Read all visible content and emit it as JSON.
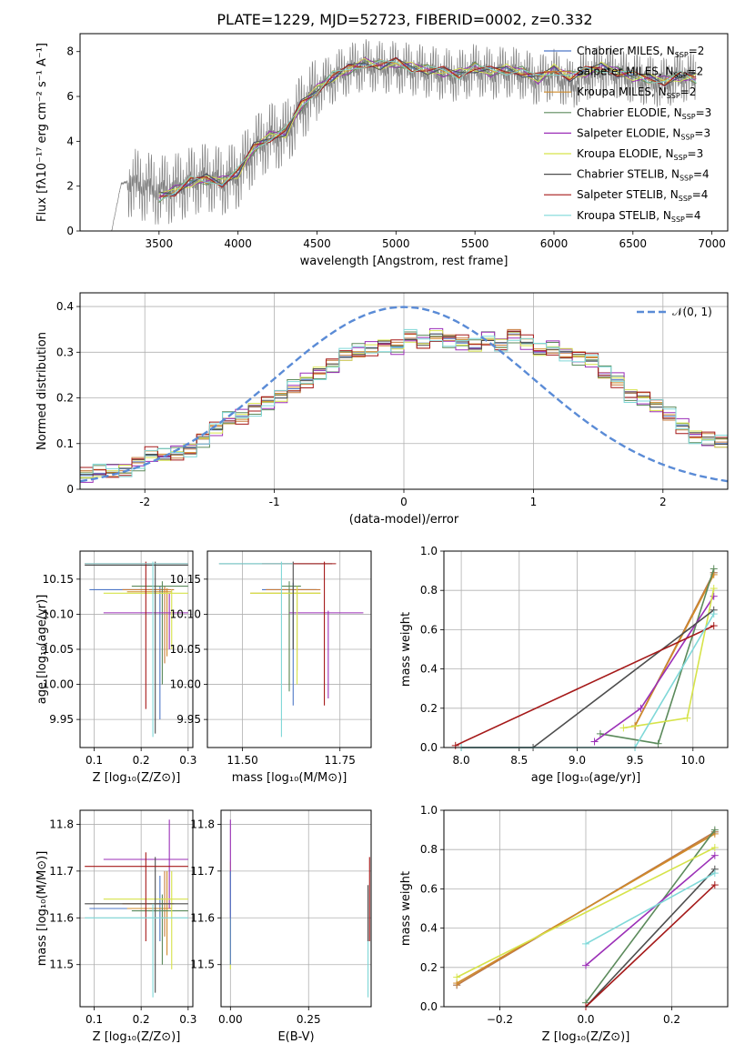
{
  "figure_title": "PLATE=1229, MJD=52723, FIBERID=0002, z=0.332",
  "series_styles": [
    {
      "name": "Chabrier MILES",
      "nssp": "2",
      "color": "#4e77c7"
    },
    {
      "name": "Salpeter MILES",
      "nssp": "2",
      "color": "#c77b3c"
    },
    {
      "name": "Kroupa MILES",
      "nssp": "2",
      "color": "#d08b2a"
    },
    {
      "name": "Chabrier ELODIE",
      "nssp": "3",
      "color": "#5b8a5b"
    },
    {
      "name": "Salpeter ELODIE",
      "nssp": "3",
      "color": "#9b2fb7"
    },
    {
      "name": "Kroupa ELODIE",
      "nssp": "3",
      "color": "#d6e34a"
    },
    {
      "name": "Chabrier STELIB",
      "nssp": "4",
      "color": "#4d4d4d"
    },
    {
      "name": "Salpeter STELIB",
      "nssp": "4",
      "color": "#a51919"
    },
    {
      "name": "Kroupa STELIB",
      "nssp": "4",
      "color": "#7fd8d8"
    }
  ],
  "chart_data": [
    {
      "type": "line",
      "xlabel": "wavelength [Angstrom, rest frame]",
      "ylabel": "Flux [fλ10⁻¹⁷ erg cm⁻² s⁻¹ A⁻¹]",
      "xlim": [
        3000,
        7100
      ],
      "ylim": [
        0,
        8.8
      ],
      "xticks": [
        3500,
        4000,
        4500,
        5000,
        5500,
        6000,
        6500,
        7000
      ],
      "yticks": [
        0,
        2,
        4,
        6,
        8
      ],
      "legend_position": "top-right",
      "grid": false,
      "data_color": "#808080",
      "data_x": [
        3200,
        3260,
        3300,
        3400,
        3500,
        3600,
        3700,
        3800,
        3900,
        4000,
        4100,
        4200,
        4300,
        4400,
        4500,
        4600,
        4700,
        4800,
        4900,
        5000,
        5100,
        5200,
        5300,
        5400,
        5500,
        5600,
        5700,
        5800,
        5900,
        6000,
        6100,
        6200,
        6300,
        6400,
        6500,
        6600,
        6700,
        6800,
        6900
      ],
      "data_y": [
        0,
        2.1,
        2.2,
        2.0,
        1.8,
        1.9,
        2.2,
        2.4,
        2.2,
        2.5,
        3.6,
        4.2,
        4.3,
        5.5,
        6.3,
        6.8,
        7.2,
        7.4,
        7.3,
        7.3,
        7.2,
        7.1,
        7.0,
        6.9,
        7.2,
        7.0,
        7.1,
        7.0,
        6.7,
        7.0,
        6.5,
        6.9,
        7.2,
        7.0,
        6.8,
        6.7,
        6.6,
        6.9,
        6.8
      ],
      "model_x": [
        3500,
        3600,
        3700,
        3800,
        3900,
        4000,
        4100,
        4200,
        4300,
        4400,
        4500,
        4600,
        4700,
        4800,
        4900,
        5000,
        5100,
        5200,
        5300,
        5400,
        5500,
        5600,
        5700,
        5800,
        5900,
        6000,
        6100,
        6200,
        6300,
        6400,
        6500,
        6600,
        6700,
        6800,
        6900
      ],
      "model_y": [
        1.5,
        1.8,
        2.2,
        2.3,
        2.2,
        2.6,
        3.7,
        4.2,
        4.4,
        5.6,
        6.3,
        6.9,
        7.2,
        7.5,
        7.4,
        7.5,
        7.3,
        7.2,
        7.1,
        7.0,
        7.3,
        7.1,
        7.2,
        7.1,
        6.8,
        7.2,
        6.9,
        7.1,
        7.3,
        7.1,
        6.9,
        6.8,
        6.7,
        6.9,
        6.8
      ]
    },
    {
      "type": "line",
      "xlabel": "(data-model)/error",
      "ylabel": "Normed distribution",
      "xlim": [
        -2.5,
        2.5
      ],
      "ylim": [
        0,
        0.43
      ],
      "xticks": [
        -2,
        -1,
        0,
        1,
        2
      ],
      "yticks": [
        0.0,
        0.1,
        0.2,
        0.3,
        0.4
      ],
      "grid": true,
      "legend_position": "top-right",
      "gauss_label": "𝒩(0, 1)",
      "gauss_color": "#5a8bd6",
      "hist_edges_start": -2.5,
      "hist_bin": 0.1,
      "hist_values": [
        0.03,
        0.035,
        0.04,
        0.045,
        0.06,
        0.075,
        0.07,
        0.08,
        0.09,
        0.11,
        0.13,
        0.15,
        0.16,
        0.18,
        0.19,
        0.2,
        0.22,
        0.24,
        0.26,
        0.27,
        0.29,
        0.3,
        0.31,
        0.32,
        0.31,
        0.33,
        0.32,
        0.34,
        0.33,
        0.32,
        0.31,
        0.33,
        0.32,
        0.34,
        0.32,
        0.3,
        0.31,
        0.3,
        0.29,
        0.28,
        0.25,
        0.24,
        0.21,
        0.2,
        0.18,
        0.16,
        0.14,
        0.12,
        0.11,
        0.1
      ],
      "hist_offsets": [
        0.0,
        0.012,
        -0.01,
        0.02,
        -0.015,
        0.008,
        -0.005,
        0.018,
        -0.02
      ]
    },
    {
      "type": "scatter",
      "xlabel": "Z [log₁₀(Z/Z⊙)]",
      "ylabel": "age  [log₁₀(age/yr)]",
      "xlim": [
        0.07,
        0.31
      ],
      "ylim": [
        9.91,
        10.19
      ],
      "xticks": [
        0.1,
        0.2,
        0.3
      ],
      "xticklabels": [
        "0.1",
        "0.2",
        "0.3"
      ],
      "yticks": [
        9.95,
        10.0,
        10.05,
        10.1,
        10.15
      ],
      "yticklabels": [
        "9.95",
        "10.00",
        "10.05",
        "10.10",
        "10.15"
      ],
      "grid": true,
      "points": [
        {
          "x": 0.24,
          "y": 10.135,
          "xlo": 0.09,
          "xhi": 0.26,
          "ylo": 9.95,
          "yhi": 10.14,
          "s": 0
        },
        {
          "x": 0.25,
          "y": 10.135,
          "xlo": 0.16,
          "xhi": 0.27,
          "ylo": 10.03,
          "yhi": 10.14,
          "s": 1
        },
        {
          "x": 0.255,
          "y": 10.132,
          "xlo": 0.17,
          "xhi": 0.265,
          "ylo": 10.04,
          "yhi": 10.137,
          "s": 2
        },
        {
          "x": 0.245,
          "y": 10.14,
          "xlo": 0.18,
          "xhi": 0.3,
          "ylo": 10.0,
          "yhi": 10.147,
          "s": 3
        },
        {
          "x": 0.26,
          "y": 10.102,
          "xlo": 0.12,
          "xhi": 0.3,
          "ylo": 10.05,
          "yhi": 10.13,
          "s": 4
        },
        {
          "x": 0.265,
          "y": 10.13,
          "xlo": 0.12,
          "xhi": 0.3,
          "ylo": 10.05,
          "yhi": 10.135,
          "s": 5
        },
        {
          "x": 0.23,
          "y": 10.17,
          "xlo": 0.08,
          "xhi": 0.3,
          "ylo": 9.93,
          "yhi": 10.175,
          "s": 6
        },
        {
          "x": 0.21,
          "y": 10.172,
          "xlo": 0.08,
          "xhi": 0.3,
          "ylo": 9.965,
          "yhi": 10.175,
          "s": 7
        },
        {
          "x": 0.225,
          "y": 10.172,
          "xlo": 0.08,
          "xhi": 0.3,
          "ylo": 9.925,
          "yhi": 10.175,
          "s": 8
        }
      ]
    },
    {
      "type": "scatter",
      "xlabel": "mass [log₁₀(M/M⊙)]",
      "ylabel": "",
      "xlim": [
        11.41,
        11.83
      ],
      "ylim": [
        9.91,
        10.19
      ],
      "xticks": [
        11.5,
        11.75
      ],
      "xticklabels": [
        "11.50",
        "11.75"
      ],
      "yticks": [
        9.95,
        10.0,
        10.05,
        10.1,
        10.15
      ],
      "yticklabels": [
        "9.95",
        "10.00",
        "10.05",
        "10.10",
        "10.15"
      ],
      "grid": true,
      "points": [
        {
          "x": 11.63,
          "y": 10.135,
          "xlo": 11.55,
          "xhi": 11.69,
          "ylo": 9.97,
          "yhi": 10.145,
          "s": 0
        },
        {
          "x": 11.64,
          "y": 10.135,
          "xlo": 11.56,
          "xhi": 11.7,
          "ylo": 10.02,
          "yhi": 10.14,
          "s": 1
        },
        {
          "x": 11.62,
          "y": 10.13,
          "xlo": 11.52,
          "xhi": 11.7,
          "ylo": 10.0,
          "yhi": 10.135,
          "s": 2
        },
        {
          "x": 11.62,
          "y": 10.14,
          "xlo": 11.6,
          "xhi": 11.65,
          "ylo": 9.99,
          "yhi": 10.147,
          "s": 3
        },
        {
          "x": 11.72,
          "y": 10.102,
          "xlo": 11.62,
          "xhi": 11.81,
          "ylo": 9.98,
          "yhi": 10.105,
          "s": 4
        },
        {
          "x": 11.64,
          "y": 10.13,
          "xlo": 11.52,
          "xhi": 11.7,
          "ylo": 10.0,
          "yhi": 10.14,
          "s": 5
        },
        {
          "x": 11.63,
          "y": 10.172,
          "xlo": 11.44,
          "xhi": 11.73,
          "ylo": 10.05,
          "yhi": 10.175,
          "s": 6
        },
        {
          "x": 11.71,
          "y": 10.172,
          "xlo": 11.55,
          "xhi": 11.74,
          "ylo": 9.97,
          "yhi": 10.175,
          "s": 7
        },
        {
          "x": 11.6,
          "y": 10.172,
          "xlo": 11.44,
          "xhi": 11.63,
          "ylo": 9.925,
          "yhi": 10.175,
          "s": 8
        }
      ]
    },
    {
      "type": "line",
      "xlabel": "age  [log₁₀(age/yr)]",
      "ylabel": "mass weight",
      "xlim": [
        7.85,
        10.3
      ],
      "ylim": [
        0,
        1.0
      ],
      "xticks": [
        8.0,
        8.5,
        9.0,
        9.5,
        10.0
      ],
      "xticklabels": [
        "8.0",
        "8.5",
        "9.0",
        "9.5",
        "10.0"
      ],
      "yticks": [
        0,
        0.2,
        0.4,
        0.6,
        0.8,
        1.0
      ],
      "yticklabels": [
        "0.0",
        "0.2",
        "0.4",
        "0.6",
        "0.8",
        "1.0"
      ],
      "grid": true,
      "lines": [
        {
          "x": [
            9.5,
            10.18
          ],
          "y": [
            0.11,
            0.89
          ],
          "s": 0
        },
        {
          "x": [
            9.5,
            10.18
          ],
          "y": [
            0.11,
            0.89
          ],
          "s": 1
        },
        {
          "x": [
            9.5,
            10.18
          ],
          "y": [
            0.11,
            0.88
          ],
          "s": 2
        },
        {
          "x": [
            9.2,
            9.7,
            10.18
          ],
          "y": [
            0.07,
            0.02,
            0.91
          ],
          "s": 3
        },
        {
          "x": [
            9.15,
            9.55,
            10.18
          ],
          "y": [
            0.03,
            0.2,
            0.77
          ],
          "s": 4
        },
        {
          "x": [
            9.4,
            9.95,
            10.18
          ],
          "y": [
            0.1,
            0.15,
            0.81
          ],
          "s": 5
        },
        {
          "x": [
            8.0,
            8.62,
            10.18
          ],
          "y": [
            0.0,
            0.0,
            0.7
          ],
          "s": 6
        },
        {
          "x": [
            7.95,
            10.18
          ],
          "y": [
            0.01,
            0.62
          ],
          "s": 7
        },
        {
          "x": [
            8.0,
            9.5,
            10.18
          ],
          "y": [
            0.0,
            0.0,
            0.68
          ],
          "s": 8
        }
      ]
    },
    {
      "type": "scatter",
      "xlabel": "Z [log₁₀(Z/Z⊙)]",
      "ylabel": "mass [log₁₀(M/M⊙)]",
      "xlim": [
        0.07,
        0.31
      ],
      "ylim": [
        11.41,
        11.83
      ],
      "xticks": [
        0.1,
        0.2,
        0.3
      ],
      "xticklabels": [
        "0.1",
        "0.2",
        "0.3"
      ],
      "yticks": [
        11.5,
        11.6,
        11.7,
        11.8
      ],
      "yticklabels": [
        "11.5",
        "11.6",
        "11.7",
        "11.8"
      ],
      "grid": true,
      "points": [
        {
          "x": 0.24,
          "y": 11.62,
          "xlo": 0.09,
          "xhi": 0.26,
          "ylo": 11.55,
          "yhi": 11.69,
          "s": 0
        },
        {
          "x": 0.25,
          "y": 11.63,
          "xlo": 0.16,
          "xhi": 0.27,
          "ylo": 11.56,
          "yhi": 11.7,
          "s": 1
        },
        {
          "x": 0.255,
          "y": 11.62,
          "xlo": 0.17,
          "xhi": 0.265,
          "ylo": 11.52,
          "yhi": 11.7,
          "s": 2
        },
        {
          "x": 0.245,
          "y": 11.615,
          "xlo": 0.18,
          "xhi": 0.3,
          "ylo": 11.5,
          "yhi": 11.65,
          "s": 3
        },
        {
          "x": 0.26,
          "y": 11.725,
          "xlo": 0.12,
          "xhi": 0.3,
          "ylo": 11.62,
          "yhi": 11.81,
          "s": 4
        },
        {
          "x": 0.265,
          "y": 11.64,
          "xlo": 0.12,
          "xhi": 0.3,
          "ylo": 11.49,
          "yhi": 11.7,
          "s": 5
        },
        {
          "x": 0.23,
          "y": 11.63,
          "xlo": 0.08,
          "xhi": 0.3,
          "ylo": 11.44,
          "yhi": 11.73,
          "s": 6
        },
        {
          "x": 0.21,
          "y": 11.71,
          "xlo": 0.08,
          "xhi": 0.3,
          "ylo": 11.55,
          "yhi": 11.74,
          "s": 7
        },
        {
          "x": 0.225,
          "y": 11.6,
          "xlo": 0.08,
          "xhi": 0.3,
          "ylo": 11.43,
          "yhi": 11.63,
          "s": 8
        }
      ]
    },
    {
      "type": "scatter",
      "xlabel": "E(B-V)",
      "ylabel": "",
      "xlim": [
        -0.03,
        0.45
      ],
      "ylim": [
        11.41,
        11.83
      ],
      "xticks": [
        0.0,
        0.25
      ],
      "xticklabels": [
        "0.00",
        "0.25"
      ],
      "yticks": [
        11.5,
        11.6,
        11.7,
        11.8
      ],
      "yticklabels": [
        "11.5",
        "11.6",
        "11.7",
        "11.8"
      ],
      "grid": true,
      "points": [
        {
          "x": 0.0,
          "y": 11.6,
          "xlo": 0.0,
          "xhi": 0.0,
          "ylo": 11.49,
          "yhi": 11.72,
          "s": 5
        },
        {
          "x": 0.0,
          "y": 11.72,
          "xlo": 0.0,
          "xhi": 0.0,
          "ylo": 11.6,
          "yhi": 11.81,
          "s": 4
        },
        {
          "x": 0.0,
          "y": 11.62,
          "xlo": 0.0,
          "xhi": 0.0,
          "ylo": 11.5,
          "yhi": 11.7,
          "s": 0
        },
        {
          "x": 0.44,
          "y": 11.6,
          "xlo": 0.44,
          "xhi": 0.44,
          "ylo": 11.43,
          "yhi": 11.66,
          "s": 8
        },
        {
          "x": 0.44,
          "y": 11.64,
          "xlo": 0.44,
          "xhi": 0.44,
          "ylo": 11.55,
          "yhi": 11.67,
          "s": 6
        },
        {
          "x": 0.445,
          "y": 11.67,
          "xlo": 0.445,
          "xhi": 0.445,
          "ylo": 11.55,
          "yhi": 11.73,
          "s": 7
        }
      ]
    },
    {
      "type": "line",
      "xlabel": "Z [log₁₀(Z/Z⊙)]",
      "ylabel": "mass weight",
      "xlim": [
        -0.33,
        0.33
      ],
      "ylim": [
        0,
        1.0
      ],
      "xticks": [
        -0.2,
        0.0,
        0.2
      ],
      "xticklabels": [
        "−0.2",
        "0.0",
        "0.2"
      ],
      "yticks": [
        0,
        0.2,
        0.4,
        0.6,
        0.8,
        1.0
      ],
      "yticklabels": [
        "0.0",
        "0.2",
        "0.4",
        "0.6",
        "0.8",
        "1.0"
      ],
      "grid": true,
      "lines": [
        {
          "x": [
            -0.3,
            0.3
          ],
          "y": [
            0.11,
            0.89
          ],
          "s": 0
        },
        {
          "x": [
            -0.3,
            0.3
          ],
          "y": [
            0.11,
            0.89
          ],
          "s": 1
        },
        {
          "x": [
            -0.3,
            0.3
          ],
          "y": [
            0.12,
            0.88
          ],
          "s": 2
        },
        {
          "x": [
            0.0,
            0.3
          ],
          "y": [
            0.02,
            0.9
          ],
          "s": 3
        },
        {
          "x": [
            0.0,
            0.3
          ],
          "y": [
            0.21,
            0.77
          ],
          "s": 4
        },
        {
          "x": [
            -0.3,
            0.3
          ],
          "y": [
            0.15,
            0.81
          ],
          "s": 5
        },
        {
          "x": [
            0.0,
            0.3
          ],
          "y": [
            0.0,
            0.7
          ],
          "s": 6
        },
        {
          "x": [
            0.0,
            0.3
          ],
          "y": [
            0.0,
            0.62
          ],
          "s": 7
        },
        {
          "x": [
            0.0,
            0.3
          ],
          "y": [
            0.32,
            0.68
          ],
          "s": 8
        }
      ]
    }
  ]
}
